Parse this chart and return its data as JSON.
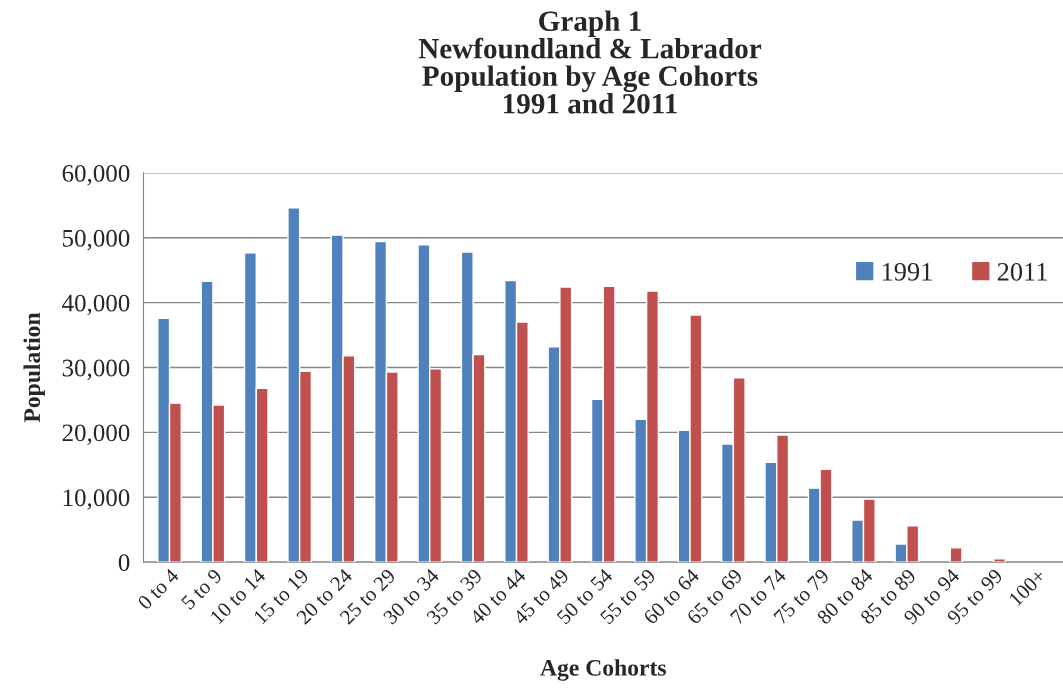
{
  "chart_data": {
    "type": "bar",
    "title": "Graph 1\nNewfoundland & Labrador\nPopulation by Age Cohorts\n1991 and 2011",
    "xlabel": "Age Cohorts",
    "ylabel": "Population",
    "categories": [
      "0 to 4",
      "5 to 9",
      "10 to 14",
      "15 to 19",
      "20 to 24",
      "25 to 29",
      "30 to 34",
      "35 to 39",
      "40 to 44",
      "45 to 49",
      "50 to 54",
      "55 to 59",
      "60 to 64",
      "65 to 69",
      "70 to 74",
      "75 to 79",
      "80 to 84",
      "85 to 89",
      "90 to 94",
      "95 to 99",
      "100+"
    ],
    "series": [
      {
        "name": "1991",
        "color": "#4f81bd",
        "values": [
          37600,
          43300,
          47700,
          54600,
          50400,
          49400,
          48900,
          47800,
          43400,
          33200,
          25100,
          22000,
          20300,
          18200,
          15400,
          11400,
          6500,
          2800,
          null,
          null,
          null
        ]
      },
      {
        "name": "2011",
        "color": "#c0504d",
        "values": [
          24500,
          24200,
          26800,
          29400,
          31800,
          29300,
          29800,
          32000,
          37000,
          42400,
          42500,
          41800,
          38100,
          28400,
          19600,
          14300,
          9700,
          5600,
          2200,
          500,
          null
        ]
      }
    ],
    "ylim": [
      0,
      60000
    ],
    "yticks": [
      {
        "value": 0,
        "label": "0"
      },
      {
        "value": 10000,
        "label": "10,000"
      },
      {
        "value": 20000,
        "label": "20,000"
      },
      {
        "value": 30000,
        "label": "30,000"
      },
      {
        "value": 40000,
        "label": "40,000"
      },
      {
        "value": 50000,
        "label": "50,000"
      },
      {
        "value": 60000,
        "label": "60,000"
      }
    ],
    "grid": "y",
    "legend": "right"
  }
}
